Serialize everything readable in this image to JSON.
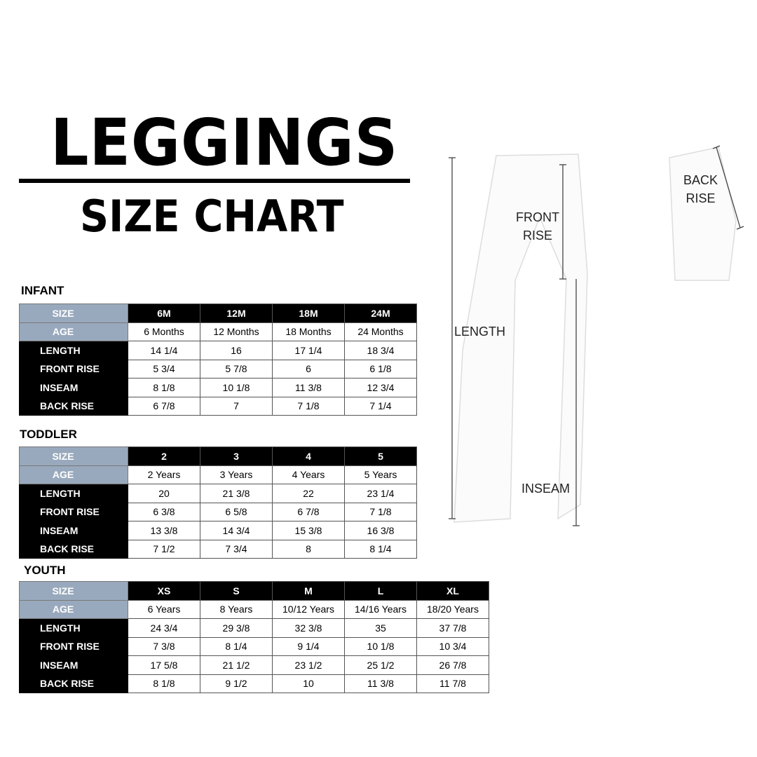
{
  "title": "LEGGINGS",
  "subtitle": "SIZE CHART",
  "tables": [
    {
      "section": "INFANT",
      "sizes": [
        "6M",
        "12M",
        "18M",
        "24M"
      ],
      "rows": [
        {
          "label": "AGE",
          "values": [
            "6 Months",
            "12 Months",
            "18 Months",
            "24 Months"
          ]
        },
        {
          "label": "LENGTH",
          "values": [
            "14 1/4",
            "16",
            "17 1/4",
            "18 3/4"
          ]
        },
        {
          "label": "FRONT RISE",
          "values": [
            "5 3/4",
            "5 7/8",
            "6",
            "6 1/8"
          ]
        },
        {
          "label": "INSEAM",
          "values": [
            "8 1/8",
            "10 1/8",
            "11 3/8",
            "12 3/4"
          ]
        },
        {
          "label": "BACK RISE",
          "values": [
            "6 7/8",
            "7",
            "7 1/8",
            "7 1/4"
          ]
        }
      ]
    },
    {
      "section": "TODDLER",
      "sizes": [
        "2",
        "3",
        "4",
        "5"
      ],
      "rows": [
        {
          "label": "AGE",
          "values": [
            "2 Years",
            "3 Years",
            "4 Years",
            "5 Years"
          ]
        },
        {
          "label": "LENGTH",
          "values": [
            "20",
            "21 3/8",
            "22",
            "23 1/4"
          ]
        },
        {
          "label": "FRONT RISE",
          "values": [
            "6 3/8",
            "6 5/8",
            "6 7/8",
            "7 1/8"
          ]
        },
        {
          "label": "INSEAM",
          "values": [
            "13 3/8",
            "14 3/4",
            "15 3/8",
            "16 3/8"
          ]
        },
        {
          "label": "BACK RISE",
          "values": [
            "7 1/2",
            "7 3/4",
            "8",
            "8 1/4"
          ]
        }
      ]
    },
    {
      "section": "YOUTH",
      "sizes": [
        "XS",
        "S",
        "M",
        "L",
        "XL"
      ],
      "rows": [
        {
          "label": "AGE",
          "values": [
            "6 Years",
            "8 Years",
            "10/12 Years",
            "14/16 Years",
            "18/20 Years"
          ]
        },
        {
          "label": "LENGTH",
          "values": [
            "24 3/4",
            "29 3/8",
            "32 3/8",
            "35",
            "37 7/8"
          ]
        },
        {
          "label": "FRONT RISE",
          "values": [
            "7 3/8",
            "8 1/4",
            "9 1/4",
            "10 1/8",
            "10 3/4"
          ]
        },
        {
          "label": "INSEAM",
          "values": [
            "17 5/8",
            "21 1/2",
            "23 1/2",
            "25 1/2",
            "26 7/8"
          ]
        },
        {
          "label": "BACK RISE",
          "values": [
            "8 1/8",
            "9 1/2",
            "10",
            "11 3/8",
            "11 7/8"
          ]
        }
      ]
    }
  ],
  "size_label": "SIZE",
  "diagram": {
    "length": "LENGTH",
    "front_rise_1": "FRONT",
    "front_rise_2": "RISE",
    "inseam": "INSEAM",
    "back_rise_1": "BACK",
    "back_rise_2": "RISE"
  },
  "colors": {
    "header_blue": "#99a9bd",
    "black": "#000000"
  }
}
